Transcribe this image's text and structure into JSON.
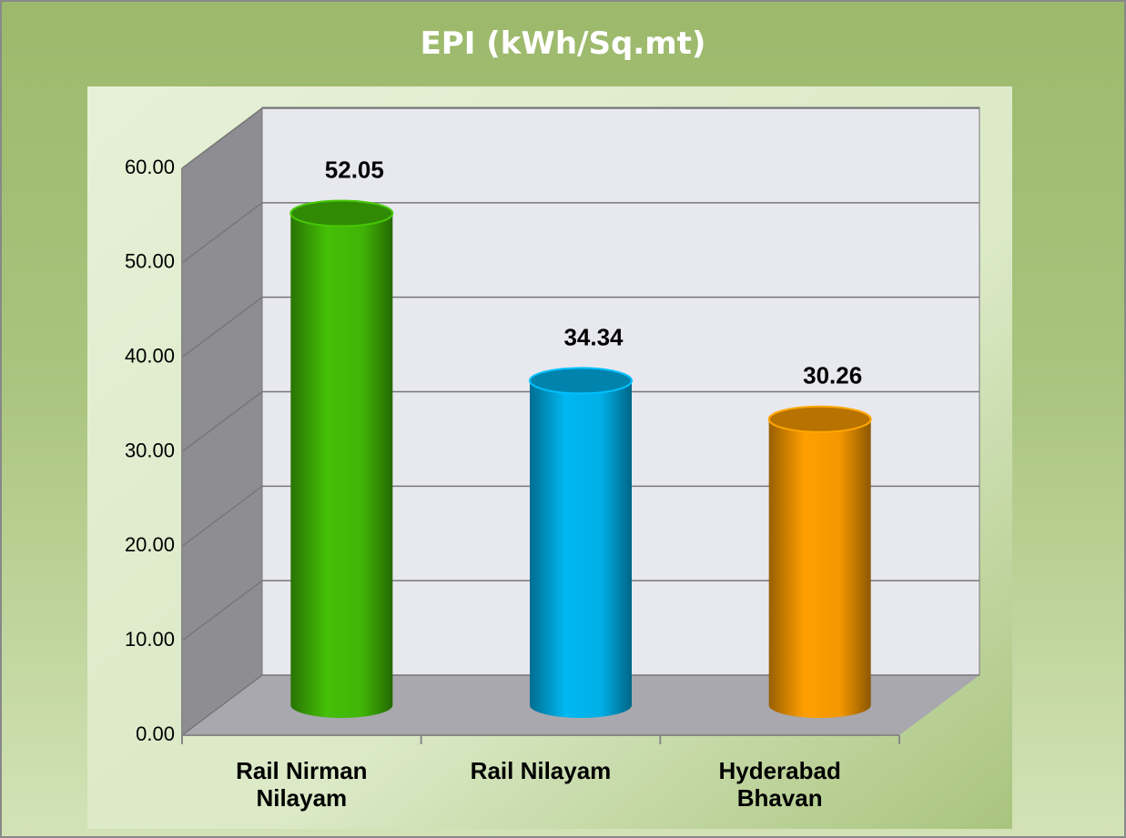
{
  "chart_data": {
    "type": "bar",
    "title": "EPI (kWh/Sq.mt)",
    "categories": [
      "Rail Nirman Nilayam",
      "Rail Nilayam",
      "Hyderabad Bhavan"
    ],
    "values": [
      52.05,
      34.34,
      30.26
    ],
    "value_labels": [
      "52.05",
      "34.34",
      "30.26"
    ],
    "colors": [
      "#44bf06",
      "#00b8f2",
      "#ff9f00"
    ],
    "ylim": [
      0,
      60
    ],
    "yticks": [
      {
        "value": 0,
        "label": "0.00"
      },
      {
        "value": 10,
        "label": "10.00"
      },
      {
        "value": 20,
        "label": "20.00"
      },
      {
        "value": 30,
        "label": "30.00"
      },
      {
        "value": 40,
        "label": "40.00"
      },
      {
        "value": 50,
        "label": "50.00"
      },
      {
        "value": 60,
        "label": "60.00"
      }
    ],
    "grid": true
  }
}
